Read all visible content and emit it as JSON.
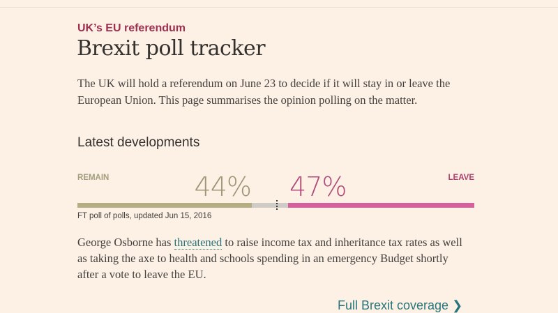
{
  "kicker": "UK’s EU referendum",
  "title": "Brexit poll tracker",
  "intro": "The UK will hold a referendum on June 23 to decide if it will stay in or leave the European Union. This page summarises the opinion polling on the matter.",
  "subheading": "Latest developments",
  "poll": {
    "remain_label": "REMAIN",
    "leave_label": "LEAVE",
    "remain_pct": "44%",
    "leave_pct": "47%",
    "remain_value": 44,
    "leave_value": 47,
    "remain_color": "#b6ae83",
    "leave_color": "#d4619b",
    "undecided_color": "#cfccc8",
    "note": "FT poll of polls, updated Jun 15, 2016"
  },
  "story": {
    "before": "George Osborne has ",
    "link": "threatened",
    "after": " to raise income tax and inheritance tax rates as well as taking the axe to health and schools spending in an emergency Budget shortly after a vote to leave the EU."
  },
  "more_link": "Full Brexit coverage",
  "more_icon": "chevron-right-icon"
}
